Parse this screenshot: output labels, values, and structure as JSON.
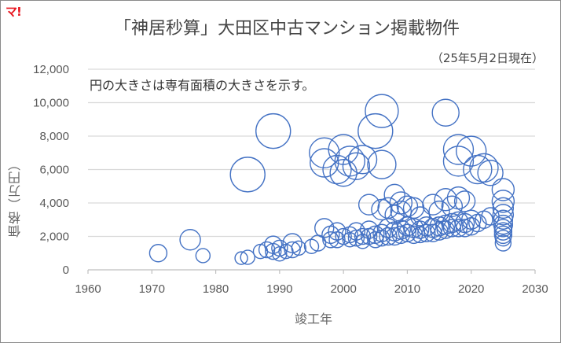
{
  "logo": {
    "text": "マ!",
    "color": "#e8141e"
  },
  "header": {
    "title": "「神居秒算」大田区中古マンション掲載物件",
    "subtitle": "（25年5月2日現在）",
    "note": "円の大きさは専有面積の大きさを示す。"
  },
  "colors": {
    "bubble": "#4472c4",
    "grid": "#d9d9d9",
    "axis": "#bfbfbf",
    "text": "#595959"
  },
  "chart_data": {
    "type": "scatter",
    "subtype": "bubble",
    "title": "「神居秒算」大田区中古マンション掲載物件",
    "subtitle": "（25年5月2日現在）",
    "annotation": "円の大きさは専有面積の大きさを示す。",
    "xlabel": "竣工年",
    "ylabel": "価格（万円）",
    "xlim": [
      1960,
      2030
    ],
    "ylim": [
      0,
      12000
    ],
    "xticks": [
      1960,
      1970,
      1980,
      1990,
      2000,
      2010,
      2020,
      2030
    ],
    "yticks": [
      0,
      2000,
      4000,
      6000,
      8000,
      10000,
      12000
    ],
    "ytick_labels": [
      "0",
      "2,000",
      "4,000",
      "6,000",
      "8,000",
      "10,000",
      "12,000"
    ],
    "grid": {
      "horizontal": true,
      "vertical": false
    },
    "legend": null,
    "series": [
      {
        "name": "掲載物件",
        "color": "#4472c4",
        "points": [
          {
            "x": 1971,
            "y": 1000,
            "r": 11
          },
          {
            "x": 1976,
            "y": 1800,
            "r": 13
          },
          {
            "x": 1978,
            "y": 850,
            "r": 9
          },
          {
            "x": 1984,
            "y": 700,
            "r": 8
          },
          {
            "x": 1985,
            "y": 750,
            "r": 9
          },
          {
            "x": 1985,
            "y": 5700,
            "r": 22
          },
          {
            "x": 1987,
            "y": 1100,
            "r": 9
          },
          {
            "x": 1988,
            "y": 1200,
            "r": 10
          },
          {
            "x": 1989,
            "y": 1500,
            "r": 11
          },
          {
            "x": 1989,
            "y": 1100,
            "r": 10
          },
          {
            "x": 1989,
            "y": 8300,
            "r": 22
          },
          {
            "x": 1990,
            "y": 1300,
            "r": 10
          },
          {
            "x": 1990,
            "y": 950,
            "r": 9
          },
          {
            "x": 1991,
            "y": 1100,
            "r": 9
          },
          {
            "x": 1992,
            "y": 1600,
            "r": 12
          },
          {
            "x": 1992,
            "y": 1200,
            "r": 10
          },
          {
            "x": 1993,
            "y": 1300,
            "r": 9
          },
          {
            "x": 1995,
            "y": 1400,
            "r": 9
          },
          {
            "x": 1996,
            "y": 1600,
            "r": 10
          },
          {
            "x": 1997,
            "y": 2500,
            "r": 12
          },
          {
            "x": 1997,
            "y": 7000,
            "r": 19
          },
          {
            "x": 1997,
            "y": 6400,
            "r": 18
          },
          {
            "x": 1998,
            "y": 2100,
            "r": 11
          },
          {
            "x": 1998,
            "y": 1800,
            "r": 10
          },
          {
            "x": 1999,
            "y": 6000,
            "r": 18
          },
          {
            "x": 1999,
            "y": 2300,
            "r": 11
          },
          {
            "x": 1999,
            "y": 1800,
            "r": 10
          },
          {
            "x": 2000,
            "y": 7200,
            "r": 19
          },
          {
            "x": 2000,
            "y": 5800,
            "r": 17
          },
          {
            "x": 2000,
            "y": 2000,
            "r": 10
          },
          {
            "x": 2001,
            "y": 6500,
            "r": 19
          },
          {
            "x": 2001,
            "y": 2100,
            "r": 10
          },
          {
            "x": 2001,
            "y": 1800,
            "r": 9
          },
          {
            "x": 2002,
            "y": 6200,
            "r": 17
          },
          {
            "x": 2002,
            "y": 2300,
            "r": 11
          },
          {
            "x": 2002,
            "y": 1900,
            "r": 10
          },
          {
            "x": 2003,
            "y": 6600,
            "r": 18
          },
          {
            "x": 2003,
            "y": 2000,
            "r": 10
          },
          {
            "x": 2003,
            "y": 1700,
            "r": 9
          },
          {
            "x": 2004,
            "y": 2400,
            "r": 11
          },
          {
            "x": 2004,
            "y": 2000,
            "r": 10
          },
          {
            "x": 2004,
            "y": 3900,
            "r": 13
          },
          {
            "x": 2005,
            "y": 8300,
            "r": 22
          },
          {
            "x": 2005,
            "y": 2100,
            "r": 11
          },
          {
            "x": 2005,
            "y": 1800,
            "r": 10
          },
          {
            "x": 2006,
            "y": 9500,
            "r": 21
          },
          {
            "x": 2006,
            "y": 6300,
            "r": 18
          },
          {
            "x": 2006,
            "y": 3600,
            "r": 13
          },
          {
            "x": 2006,
            "y": 2200,
            "r": 11
          },
          {
            "x": 2006,
            "y": 1900,
            "r": 10
          },
          {
            "x": 2007,
            "y": 3700,
            "r": 13
          },
          {
            "x": 2007,
            "y": 2500,
            "r": 12
          },
          {
            "x": 2007,
            "y": 2000,
            "r": 11
          },
          {
            "x": 2008,
            "y": 4500,
            "r": 13
          },
          {
            "x": 2008,
            "y": 3300,
            "r": 12
          },
          {
            "x": 2008,
            "y": 2300,
            "r": 12
          },
          {
            "x": 2008,
            "y": 2000,
            "r": 11
          },
          {
            "x": 2009,
            "y": 4000,
            "r": 14
          },
          {
            "x": 2009,
            "y": 3500,
            "r": 13
          },
          {
            "x": 2009,
            "y": 2400,
            "r": 12
          },
          {
            "x": 2009,
            "y": 2100,
            "r": 11
          },
          {
            "x": 2010,
            "y": 3800,
            "r": 13
          },
          {
            "x": 2010,
            "y": 2600,
            "r": 12
          },
          {
            "x": 2010,
            "y": 2200,
            "r": 11
          },
          {
            "x": 2011,
            "y": 3700,
            "r": 13
          },
          {
            "x": 2011,
            "y": 2500,
            "r": 12
          },
          {
            "x": 2011,
            "y": 2100,
            "r": 11
          },
          {
            "x": 2012,
            "y": 3200,
            "r": 12
          },
          {
            "x": 2012,
            "y": 2400,
            "r": 11
          },
          {
            "x": 2012,
            "y": 2100,
            "r": 10
          },
          {
            "x": 2013,
            "y": 2600,
            "r": 12
          },
          {
            "x": 2013,
            "y": 2200,
            "r": 11
          },
          {
            "x": 2014,
            "y": 3900,
            "r": 13
          },
          {
            "x": 2014,
            "y": 2500,
            "r": 12
          },
          {
            "x": 2014,
            "y": 2200,
            "r": 11
          },
          {
            "x": 2015,
            "y": 3500,
            "r": 13
          },
          {
            "x": 2015,
            "y": 2600,
            "r": 12
          },
          {
            "x": 2015,
            "y": 2300,
            "r": 11
          },
          {
            "x": 2016,
            "y": 9400,
            "r": 17
          },
          {
            "x": 2016,
            "y": 4200,
            "r": 14
          },
          {
            "x": 2016,
            "y": 2700,
            "r": 12
          },
          {
            "x": 2016,
            "y": 2400,
            "r": 11
          },
          {
            "x": 2017,
            "y": 3800,
            "r": 13
          },
          {
            "x": 2017,
            "y": 2800,
            "r": 12
          },
          {
            "x": 2017,
            "y": 2500,
            "r": 11
          },
          {
            "x": 2018,
            "y": 7200,
            "r": 19
          },
          {
            "x": 2018,
            "y": 6500,
            "r": 19
          },
          {
            "x": 2018,
            "y": 4300,
            "r": 14
          },
          {
            "x": 2018,
            "y": 2900,
            "r": 12
          },
          {
            "x": 2018,
            "y": 2500,
            "r": 11
          },
          {
            "x": 2019,
            "y": 4100,
            "r": 13
          },
          {
            "x": 2019,
            "y": 2800,
            "r": 12
          },
          {
            "x": 2019,
            "y": 2500,
            "r": 11
          },
          {
            "x": 2020,
            "y": 7100,
            "r": 19
          },
          {
            "x": 2020,
            "y": 3000,
            "r": 12
          },
          {
            "x": 2020,
            "y": 2600,
            "r": 11
          },
          {
            "x": 2021,
            "y": 6000,
            "r": 18
          },
          {
            "x": 2021,
            "y": 2800,
            "r": 11
          },
          {
            "x": 2022,
            "y": 6100,
            "r": 18
          },
          {
            "x": 2022,
            "y": 3000,
            "r": 11
          },
          {
            "x": 2023,
            "y": 5800,
            "r": 16
          },
          {
            "x": 2023,
            "y": 3200,
            "r": 11
          },
          {
            "x": 2025,
            "y": 4800,
            "r": 14
          },
          {
            "x": 2025,
            "y": 4100,
            "r": 14
          },
          {
            "x": 2025,
            "y": 3700,
            "r": 13
          },
          {
            "x": 2025,
            "y": 3300,
            "r": 13
          },
          {
            "x": 2025,
            "y": 3000,
            "r": 12
          },
          {
            "x": 2025,
            "y": 2700,
            "r": 12
          },
          {
            "x": 2025,
            "y": 2500,
            "r": 11
          },
          {
            "x": 2025,
            "y": 2300,
            "r": 11
          },
          {
            "x": 2025,
            "y": 2100,
            "r": 11
          },
          {
            "x": 2025,
            "y": 1900,
            "r": 10
          },
          {
            "x": 2025,
            "y": 1600,
            "r": 10
          }
        ]
      }
    ]
  }
}
